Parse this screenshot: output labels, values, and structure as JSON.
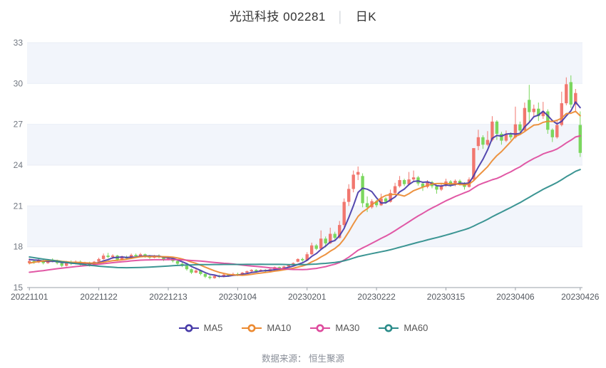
{
  "title": {
    "name_code": "光迅科技 002281",
    "separator": "│",
    "period": "日K"
  },
  "source_note": "数据来源： 恒生聚源",
  "legend": [
    {
      "label": "MA5",
      "color": "#473aa8"
    },
    {
      "label": "MA10",
      "color": "#ec8a31"
    },
    {
      "label": "MA30",
      "color": "#de4a9d"
    },
    {
      "label": "MA60",
      "color": "#2b8c8a"
    }
  ],
  "chart_data": {
    "type": "candlestick",
    "title": "光迅科技 002281 日K",
    "ylabel": "价格",
    "xlabel": "",
    "y_axis": {
      "min": 15,
      "max": 33,
      "ticks": [
        15,
        18,
        21,
        24,
        27,
        30,
        33
      ]
    },
    "x_ticks": [
      {
        "i": 0,
        "label": "20221101"
      },
      {
        "i": 15,
        "label": "20221122"
      },
      {
        "i": 30,
        "label": "20221213"
      },
      {
        "i": 45,
        "label": "20230104"
      },
      {
        "i": 60,
        "label": "20230201"
      },
      {
        "i": 75,
        "label": "20230222"
      },
      {
        "i": 90,
        "label": "20230315"
      },
      {
        "i": 105,
        "label": "20230406"
      },
      {
        "i": 119,
        "label": "20230426"
      }
    ],
    "colors": {
      "up": "#f1776f",
      "down": "#7bd75e",
      "band": "#f2f5fb",
      "grid": "#e9edf5",
      "axis": "#9aa0a8",
      "y_label": "#717780",
      "x_label": "#555a61"
    },
    "legend_position": "bottom",
    "grid": true,
    "ma_periods": [
      5,
      10,
      30,
      60
    ],
    "ma_seed_closes": [
      20.2,
      20.1,
      20.0,
      19.9,
      19.8,
      19.9,
      19.7,
      19.6,
      19.8,
      19.6,
      19.3,
      19.2,
      19.3,
      19.1,
      19.0,
      19.1,
      18.9,
      18.8,
      18.7,
      18.6,
      17.6,
      17.4,
      17.2,
      17.0,
      16.8,
      16.6,
      16.4,
      16.2,
      16.0,
      15.9,
      15.8,
      15.7,
      15.6,
      15.7,
      15.5,
      15.6,
      15.4,
      15.5,
      15.6,
      15.7,
      15.6,
      15.8,
      15.7,
      15.9,
      15.8,
      16.0,
      16.1,
      16.0,
      16.2,
      16.1,
      16.2,
      16.3,
      16.4,
      16.5,
      16.6,
      16.9,
      17.0,
      17.1,
      17.15,
      17.1
    ],
    "candles": [
      [
        "20221101",
        16.8,
        17.15,
        16.7,
        16.95
      ],
      [
        "20221102",
        16.95,
        17.05,
        16.75,
        16.85
      ],
      [
        "20221103",
        16.85,
        17.1,
        16.8,
        17.0
      ],
      [
        "20221104",
        17.0,
        17.05,
        16.7,
        16.8
      ],
      [
        "20221107",
        16.8,
        17.1,
        16.75,
        17.05
      ],
      [
        "20221108",
        17.05,
        17.15,
        16.85,
        16.95
      ],
      [
        "20221109",
        16.95,
        17.05,
        16.7,
        16.8
      ],
      [
        "20221110",
        16.8,
        16.9,
        16.5,
        16.6
      ],
      [
        "20221111",
        16.6,
        16.95,
        16.55,
        16.85
      ],
      [
        "20221114",
        16.85,
        17.0,
        16.65,
        16.75
      ],
      [
        "20221115",
        16.75,
        17.0,
        16.7,
        16.9
      ],
      [
        "20221116",
        16.9,
        17.0,
        16.6,
        16.7
      ],
      [
        "20221117",
        16.7,
        16.9,
        16.6,
        16.8
      ],
      [
        "20221118",
        16.8,
        16.9,
        16.55,
        16.65
      ],
      [
        "20221121",
        16.65,
        16.95,
        16.6,
        16.9
      ],
      [
        "20221122",
        16.9,
        17.2,
        16.85,
        17.1
      ],
      [
        "20221123",
        17.1,
        17.5,
        17.05,
        17.35
      ],
      [
        "20221124",
        17.35,
        17.55,
        17.15,
        17.25
      ],
      [
        "20221125",
        17.25,
        17.45,
        17.1,
        17.35
      ],
      [
        "20221128",
        17.35,
        17.4,
        16.95,
        17.05
      ],
      [
        "20221129",
        17.05,
        17.35,
        17.0,
        17.25
      ],
      [
        "20221130",
        17.25,
        17.35,
        17.05,
        17.15
      ],
      [
        "20221201",
        17.15,
        17.5,
        17.1,
        17.4
      ],
      [
        "20221202",
        17.4,
        17.5,
        17.2,
        17.3
      ],
      [
        "20221205",
        17.3,
        17.55,
        17.25,
        17.45
      ],
      [
        "20221206",
        17.45,
        17.5,
        17.2,
        17.3
      ],
      [
        "20221207",
        17.3,
        17.4,
        17.1,
        17.2
      ],
      [
        "20221208",
        17.2,
        17.4,
        17.15,
        17.35
      ],
      [
        "20221209",
        17.35,
        17.45,
        17.15,
        17.25
      ],
      [
        "20221212",
        17.25,
        17.3,
        16.95,
        17.05
      ],
      [
        "20221213",
        17.05,
        17.25,
        17.0,
        17.15
      ],
      [
        "20221214",
        17.15,
        17.2,
        16.85,
        16.95
      ],
      [
        "20221215",
        16.95,
        17.0,
        16.65,
        16.75
      ],
      [
        "20221216",
        16.75,
        16.85,
        16.5,
        16.6
      ],
      [
        "20221219",
        16.6,
        16.65,
        16.25,
        16.35
      ],
      [
        "20221220",
        16.35,
        16.4,
        16.0,
        16.1
      ],
      [
        "20221221",
        16.1,
        16.35,
        16.05,
        16.25
      ],
      [
        "20221222",
        16.25,
        16.3,
        15.9,
        16.0
      ],
      [
        "20221223",
        16.0,
        16.05,
        15.7,
        15.8
      ],
      [
        "20221226",
        15.8,
        15.9,
        15.6,
        15.7
      ],
      [
        "20221227",
        15.7,
        15.95,
        15.65,
        15.85
      ],
      [
        "20221228",
        15.85,
        15.95,
        15.7,
        15.8
      ],
      [
        "20221229",
        15.8,
        16.0,
        15.75,
        15.95
      ],
      [
        "20221230",
        15.95,
        16.0,
        15.8,
        15.9
      ],
      [
        "20230103",
        15.9,
        16.1,
        15.85,
        16.0
      ],
      [
        "20230104",
        16.0,
        16.1,
        15.85,
        15.95
      ],
      [
        "20230105",
        15.95,
        16.15,
        15.9,
        16.1
      ],
      [
        "20230106",
        16.1,
        16.25,
        16.0,
        16.2
      ],
      [
        "20230109",
        16.2,
        16.35,
        16.1,
        16.3
      ],
      [
        "20230110",
        16.3,
        16.35,
        16.1,
        16.2
      ],
      [
        "20230111",
        16.2,
        16.35,
        16.15,
        16.3
      ],
      [
        "20230112",
        16.3,
        16.35,
        16.1,
        16.2
      ],
      [
        "20230113",
        16.2,
        16.4,
        16.15,
        16.35
      ],
      [
        "20230116",
        16.35,
        16.55,
        16.3,
        16.5
      ],
      [
        "20230117",
        16.5,
        16.55,
        16.3,
        16.4
      ],
      [
        "20230118",
        16.4,
        16.6,
        16.35,
        16.55
      ],
      [
        "20230119",
        16.55,
        16.7,
        16.5,
        16.65
      ],
      [
        "20230120",
        16.65,
        16.85,
        16.6,
        16.8
      ],
      [
        "20230130",
        16.9,
        17.15,
        16.85,
        17.1
      ],
      [
        "20230131",
        17.1,
        17.2,
        16.9,
        17.0
      ],
      [
        "20230201",
        17.0,
        17.6,
        16.95,
        17.45
      ],
      [
        "20230202",
        17.45,
        18.3,
        17.4,
        18.1
      ],
      [
        "20230203",
        18.1,
        18.2,
        17.75,
        17.85
      ],
      [
        "20230206",
        17.85,
        19.2,
        17.8,
        18.6
      ],
      [
        "20230207",
        18.6,
        18.75,
        17.95,
        18.25
      ],
      [
        "20230208",
        18.25,
        19.4,
        18.2,
        18.95
      ],
      [
        "20230209",
        18.95,
        19.1,
        18.5,
        18.65
      ],
      [
        "20230210",
        18.65,
        19.9,
        18.6,
        19.6
      ],
      [
        "20230213",
        19.6,
        21.55,
        19.45,
        21.3
      ],
      [
        "20230214",
        21.3,
        22.6,
        21.0,
        22.25
      ],
      [
        "20230215",
        22.25,
        23.6,
        22.0,
        23.3
      ],
      [
        "20230216",
        23.3,
        23.9,
        22.9,
        23.5
      ],
      [
        "20230217",
        23.2,
        23.4,
        20.9,
        21.2
      ],
      [
        "20230220",
        21.2,
        21.7,
        20.55,
        20.9
      ],
      [
        "20230221",
        20.9,
        21.5,
        20.8,
        21.35
      ],
      [
        "20230222",
        21.35,
        21.45,
        20.9,
        21.05
      ],
      [
        "20230223",
        21.05,
        21.9,
        21.0,
        21.55
      ],
      [
        "20230224",
        21.55,
        21.65,
        21.15,
        21.3
      ],
      [
        "20230227",
        21.3,
        22.2,
        21.25,
        21.95
      ],
      [
        "20230228",
        21.95,
        22.7,
        21.85,
        22.45
      ],
      [
        "20230301",
        22.45,
        23.2,
        22.35,
        22.9
      ],
      [
        "20230302",
        22.9,
        23.0,
        22.45,
        22.6
      ],
      [
        "20230303",
        22.6,
        23.5,
        22.5,
        22.95
      ],
      [
        "20230306",
        22.95,
        23.6,
        22.85,
        23.1
      ],
      [
        "20230307",
        23.1,
        23.2,
        22.5,
        22.65
      ],
      [
        "20230308",
        22.65,
        22.75,
        22.1,
        22.4
      ],
      [
        "20230309",
        22.4,
        22.9,
        22.3,
        22.75
      ],
      [
        "20230310",
        22.75,
        22.85,
        22.3,
        22.45
      ],
      [
        "20230313",
        22.45,
        22.55,
        21.9,
        22.2
      ],
      [
        "20230314",
        22.2,
        22.65,
        22.1,
        22.5
      ],
      [
        "20230315",
        22.5,
        23.0,
        22.4,
        22.8
      ],
      [
        "20230316",
        22.8,
        22.9,
        22.4,
        22.55
      ],
      [
        "20230317",
        22.55,
        22.95,
        22.45,
        22.85
      ],
      [
        "20230320",
        22.85,
        22.95,
        22.5,
        22.65
      ],
      [
        "20230321",
        22.65,
        22.75,
        22.2,
        22.4
      ],
      [
        "20230322",
        22.4,
        23.1,
        22.35,
        22.95
      ],
      [
        "20230323",
        22.95,
        25.25,
        22.85,
        25.25
      ],
      [
        "20230324",
        25.4,
        26.6,
        25.1,
        26.05
      ],
      [
        "20230327",
        26.05,
        26.2,
        25.2,
        25.5
      ],
      [
        "20230328",
        25.5,
        26.5,
        25.4,
        25.85
      ],
      [
        "20230329",
        25.85,
        27.6,
        25.75,
        27.2
      ],
      [
        "20230330",
        27.2,
        27.3,
        25.85,
        26.3
      ],
      [
        "20230331",
        26.3,
        26.45,
        25.5,
        25.8
      ],
      [
        "20230403",
        25.8,
        26.55,
        25.7,
        26.25
      ],
      [
        "20230404",
        26.25,
        26.4,
        25.85,
        26.05
      ],
      [
        "20230406",
        26.05,
        28.3,
        25.95,
        27.0
      ],
      [
        "20230407",
        27.0,
        27.2,
        26.25,
        26.55
      ],
      [
        "20230410",
        26.55,
        28.6,
        26.5,
        28.2
      ],
      [
        "20230411",
        28.8,
        29.9,
        27.2,
        27.9
      ],
      [
        "20230412",
        27.9,
        28.45,
        27.55,
        28.15
      ],
      [
        "20230413",
        28.15,
        28.6,
        27.25,
        27.6
      ],
      [
        "20230414",
        27.6,
        28.65,
        27.4,
        27.95
      ],
      [
        "20230417",
        27.95,
        28.1,
        26.3,
        26.6
      ],
      [
        "20230418",
        26.6,
        26.7,
        25.7,
        26.05
      ],
      [
        "20230419",
        26.05,
        27.25,
        25.95,
        26.95
      ],
      [
        "20230420",
        26.95,
        29.4,
        26.85,
        28.55
      ],
      [
        "20230421",
        28.55,
        30.45,
        28.4,
        29.95
      ],
      [
        "20230424",
        30.1,
        30.6,
        28.2,
        28.45
      ],
      [
        "20230425",
        28.45,
        29.6,
        28.0,
        29.3
      ],
      [
        "20230426",
        26.95,
        27.95,
        24.6,
        24.9
      ]
    ]
  }
}
